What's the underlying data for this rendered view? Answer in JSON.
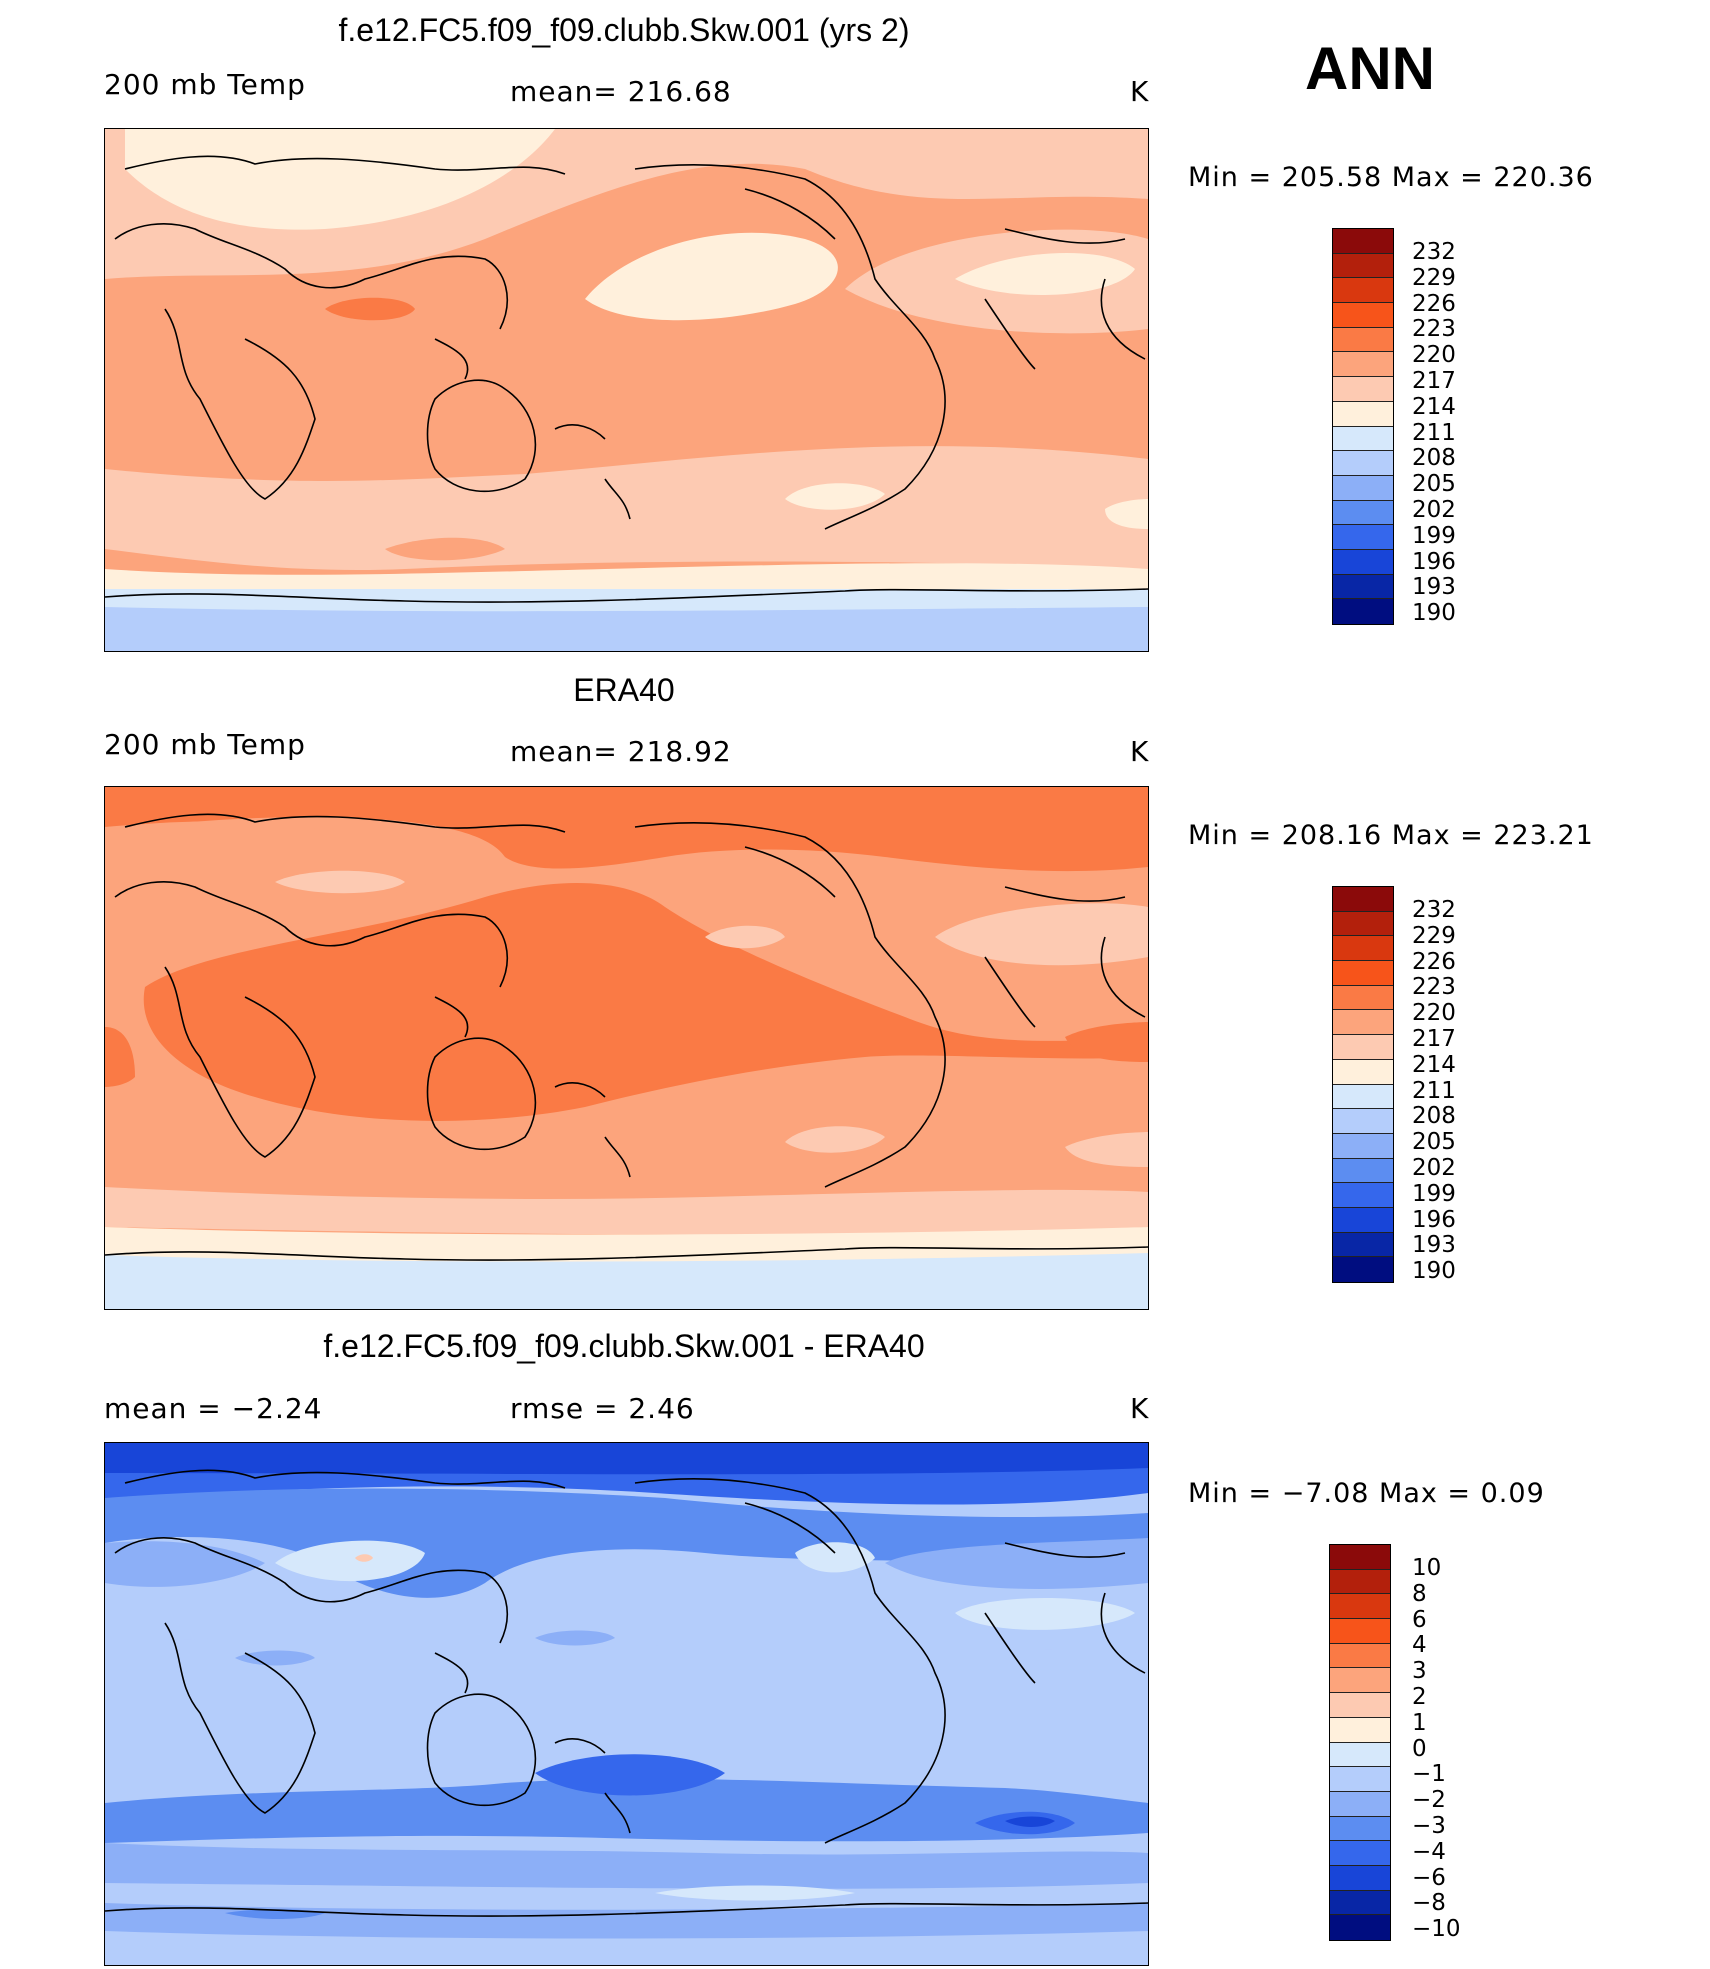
{
  "season": "ANN",
  "panels": [
    {
      "title": "f.e12.FC5.f09_f09.clubb.Skw.001 (yrs 2)",
      "left_label": "200 mb Temp",
      "center_label": "mean=  216.68",
      "unit": "K",
      "minmax": "Min  =  205.58  Max  =  220.36",
      "colorbar_levels": [
        "232",
        "229",
        "226",
        "223",
        "220",
        "217",
        "214",
        "211",
        "208",
        "205",
        "202",
        "199",
        "196",
        "193",
        "190"
      ]
    },
    {
      "title": "ERA40",
      "left_label": "200 mb Temp",
      "center_label": "mean=  218.92",
      "unit": "K",
      "minmax": "Min  =  208.16  Max  =  223.21",
      "colorbar_levels": [
        "232",
        "229",
        "226",
        "223",
        "220",
        "217",
        "214",
        "211",
        "208",
        "205",
        "202",
        "199",
        "196",
        "193",
        "190"
      ]
    },
    {
      "title": "f.e12.FC5.f09_f09.clubb.Skw.001 - ERA40",
      "left_label": "mean  =    −2.24",
      "center_label": "rmse  =     2.46",
      "unit": "K",
      "minmax": "Min  =    −7.08  Max  =      0.09",
      "colorbar_levels": [
        "10",
        "8",
        "6",
        "4",
        "3",
        "2",
        "1",
        "0",
        "−1",
        "−2",
        "−3",
        "−4",
        "−6",
        "−8",
        "−10"
      ]
    }
  ],
  "colorbar_colors": [
    "#8b0a0a",
    "#b3200c",
    "#d9380f",
    "#f7541a",
    "#fa7a45",
    "#fca47c",
    "#fdcab2",
    "#fff0dc",
    "#d6e8fb",
    "#b4cdfb",
    "#8caff7",
    "#5c8df1",
    "#3567ec",
    "#1845d8",
    "#0826a6",
    "#000d80"
  ],
  "colorbar_colors_top": [
    "#8b0a0a",
    "#b3200c",
    "#d9380f",
    "#f7541a",
    "#fa7a45",
    "#fca47c",
    "#fdcab2",
    "#fff0dc",
    "#d6e8fb",
    "#b4cdfb",
    "#8caff7",
    "#5c8df1",
    "#3567ec",
    "#1845d8",
    "#0826a6",
    "#000d80"
  ]
}
